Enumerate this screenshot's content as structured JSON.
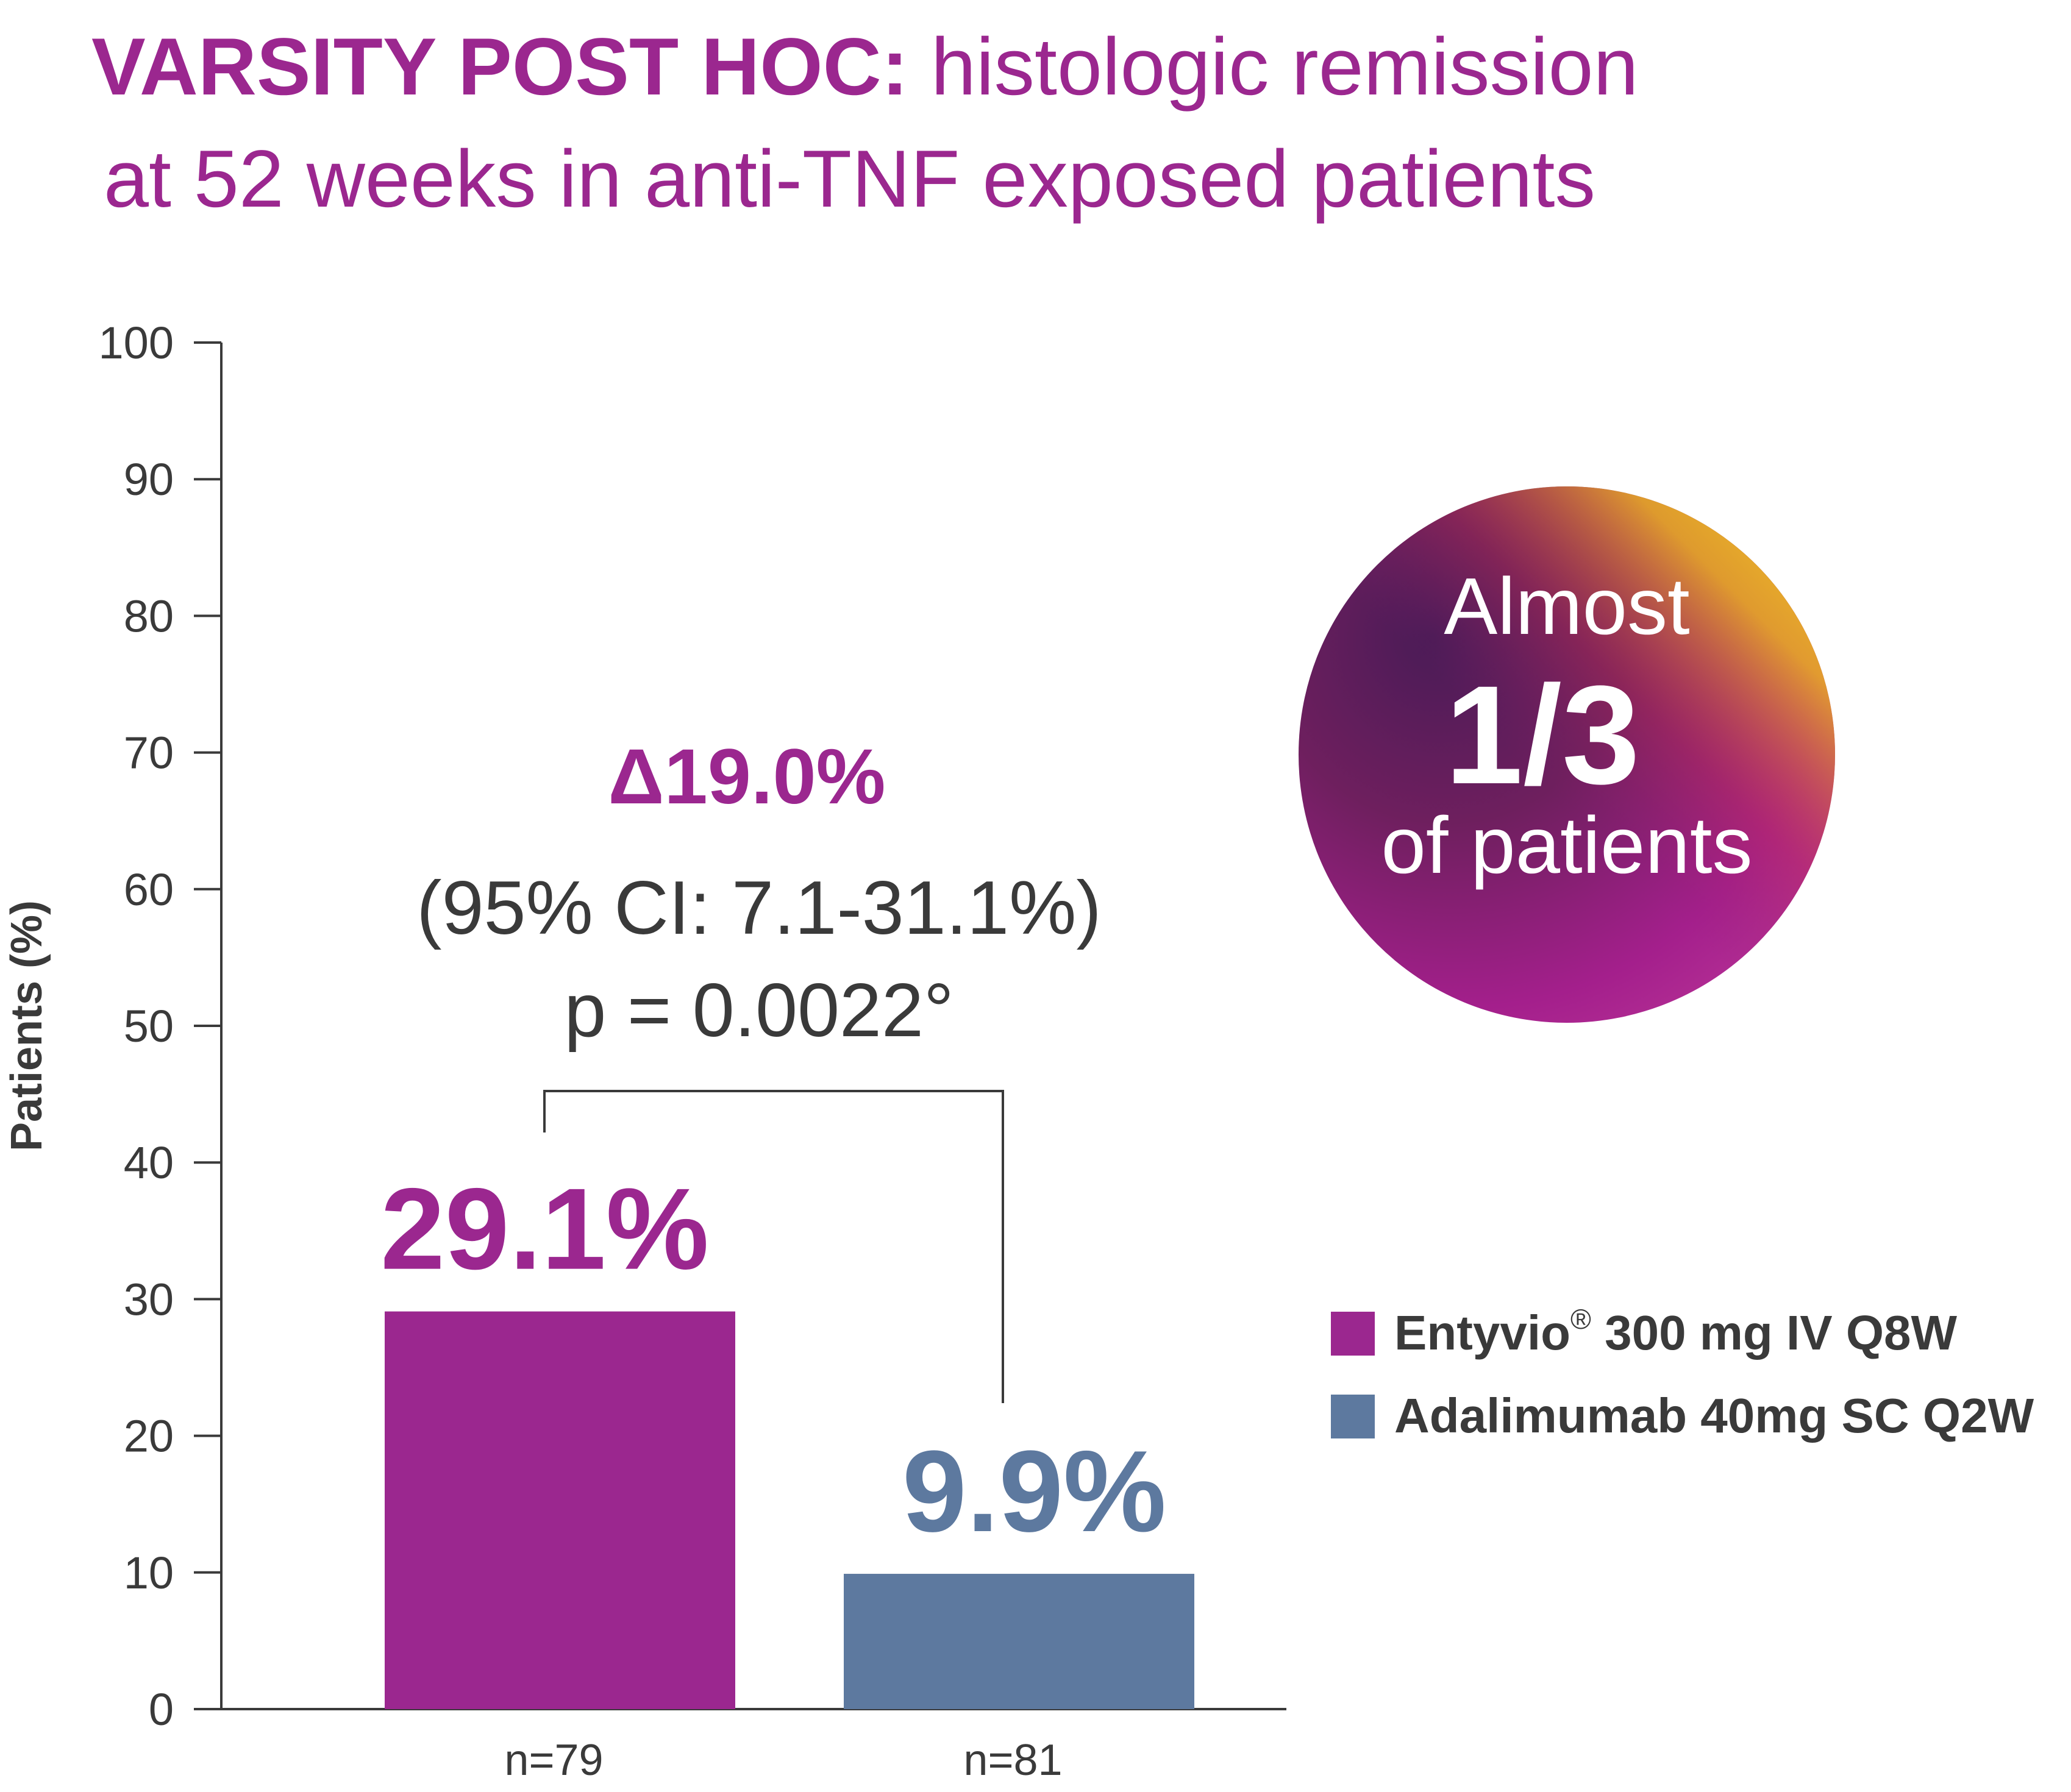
{
  "title": {
    "bold": "VARSITY POST HOC:",
    "rest": " histologic remission",
    "line2": "at 52 weeks in anti-TNF exposed patients"
  },
  "colors": {
    "accent": "#9b278f",
    "entyvio": "#9b278f",
    "adalimumab": "#5d799f",
    "axis": "#3a3a3a",
    "text": "#3a3a3a"
  },
  "chart_data": {
    "type": "bar",
    "categories": [
      "n=79",
      "n=81"
    ],
    "series": [
      {
        "name": "Entyvio® 300 mg IV Q8W",
        "value": 29.1,
        "label": "29.1%",
        "color_key": "entyvio"
      },
      {
        "name": "Adalimumab 40mg SC Q2W",
        "value": 9.9,
        "label": "9.9%",
        "color_key": "adalimumab"
      }
    ],
    "ylabel": "Patients (%)",
    "ylim": [
      0,
      100
    ],
    "yticks": [
      0,
      10,
      20,
      30,
      40,
      50,
      60,
      70,
      80,
      90,
      100
    ],
    "legend": [
      {
        "name": "Entyvio",
        "superscript": "®",
        "suffix": " 300 mg IV Q8W",
        "color_key": "entyvio"
      },
      {
        "name": "Adalimumab 40mg SC Q2W",
        "superscript": "",
        "suffix": "",
        "color_key": "adalimumab"
      }
    ],
    "legend_position": "right",
    "annotation": {
      "delta": "Δ19.0%",
      "ci": "(95% CI: 7.1-31.1%)",
      "p": "p = 0.0022°"
    }
  },
  "badge": {
    "line1": "Almost",
    "line2": "1/3",
    "line3": "of patients"
  }
}
